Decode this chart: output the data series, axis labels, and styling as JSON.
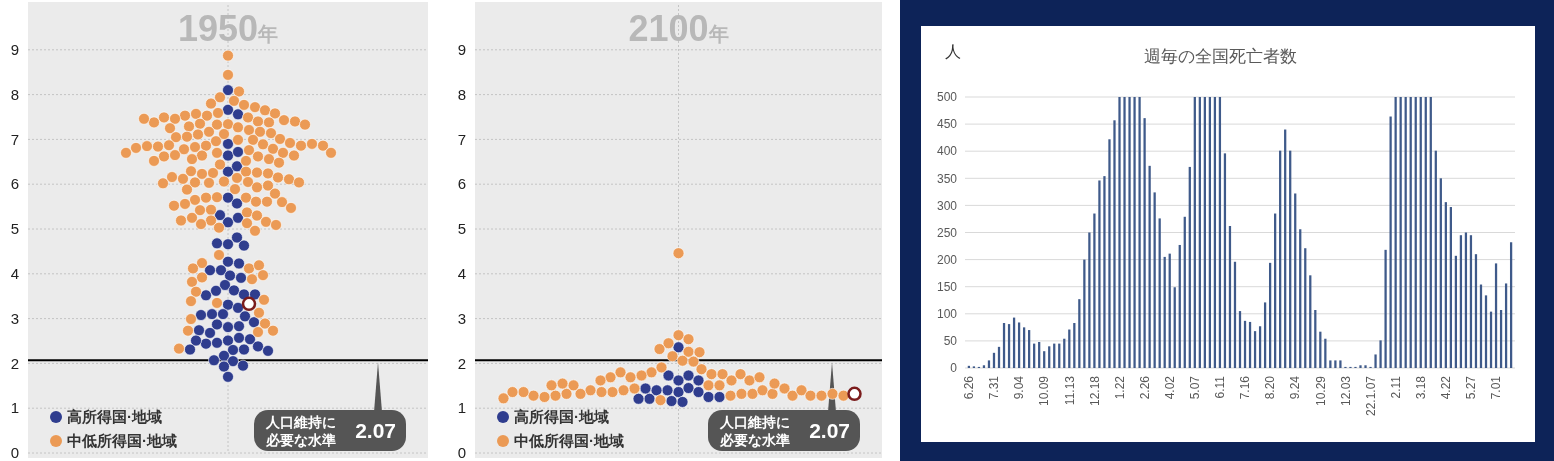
{
  "chart_data": [
    {
      "type": "scatter",
      "title": "1950年",
      "categories": [
        null
      ],
      "ylim": [
        0,
        10
      ],
      "yticks": [
        0,
        1,
        2,
        3,
        4,
        5,
        6,
        7,
        8,
        9
      ],
      "grid": true,
      "legend": "bottom left",
      "ref_lines": [
        {
          "axis": "y",
          "value": 2.07,
          "label": "人口維持に必要な水準 2.07",
          "color": "#000000"
        }
      ],
      "series": [
        {
          "name": "高所得国·地域",
          "color": "#2f3d8e",
          "x": [
            null,
            null,
            null,
            null,
            null,
            null,
            null,
            null,
            null,
            null,
            null,
            null,
            null,
            null,
            null,
            null,
            null,
            null,
            null,
            null,
            null,
            null,
            null,
            null,
            null,
            null,
            null,
            null,
            null,
            null,
            null,
            null,
            null,
            null,
            null,
            null,
            null,
            null,
            null,
            null,
            null,
            null,
            null,
            null,
            null,
            null,
            null,
            null,
            null,
            null,
            null,
            null,
            null,
            null,
            null,
            null,
            null,
            null
          ],
          "values": [
            6.64,
            6.28,
            7.66,
            8.1,
            7.56,
            6.9,
            6.4,
            6.72,
            5.7,
            5.57,
            5.15,
            5.25,
            5.31,
            4.66,
            4.81,
            4.68,
            4.63,
            4.27,
            4.23,
            4.08,
            4.08,
            3.96,
            3.91,
            3.75,
            3.63,
            3.62,
            3.54,
            3.52,
            3.54,
            3.31,
            3.24,
            3.1,
            3.1,
            3.05,
            3.08,
            2.81,
            2.92,
            2.87,
            2.83,
            2.68,
            2.74,
            2.51,
            2.57,
            2.46,
            2.54,
            2.44,
            2.51,
            2.3,
            2.38,
            2.31,
            2.17,
            2.31,
            2.28,
            2.05,
            2.07,
            1.95,
            1.93,
            1.7
          ]
        },
        {
          "name": "中低所得国·地域",
          "color": "#eb9a55",
          "x": [
            null,
            null,
            null,
            null,
            null,
            null,
            null,
            null,
            null,
            null,
            null,
            null,
            null,
            null,
            null,
            null,
            null,
            null,
            null,
            null,
            null,
            null,
            null,
            null,
            null,
            null,
            null,
            null,
            null,
            null,
            null,
            null,
            null,
            null,
            null,
            null,
            null,
            null,
            null,
            null,
            null,
            null,
            null,
            null,
            null,
            null,
            null,
            null,
            null,
            null,
            null,
            null,
            null,
            null,
            null,
            null,
            null,
            null,
            null,
            null,
            null,
            null,
            null,
            null,
            null,
            null,
            null,
            null,
            null,
            null,
            null,
            null,
            null,
            null,
            null,
            null,
            null,
            null,
            null,
            null,
            null,
            null,
            null,
            null,
            null,
            null,
            null,
            null,
            null,
            null,
            null,
            null,
            null,
            null,
            null,
            null,
            null,
            null,
            null,
            null,
            null,
            null,
            null,
            null,
            null,
            null,
            null,
            null,
            null,
            null,
            null,
            null,
            null,
            null,
            null,
            null,
            null,
            null,
            null,
            null,
            null,
            null,
            null,
            null,
            null,
            null,
            null,
            null,
            null,
            null,
            null,
            null,
            null,
            null,
            null,
            null
          ],
          "values": [
            4.42,
            4.12,
            4.24,
            4.19,
            4.12,
            3.88,
            3.97,
            3.92,
            3.82,
            3.6,
            3.42,
            3.35,
            3.39,
            3.13,
            2.99,
            2.89,
            2.7,
            2.73,
            2.73,
            2.33,
            8.87,
            8.44,
            8.07,
            7.86,
            7.94,
            7.77,
            7.8,
            7.72,
            7.59,
            7.53,
            7.49,
            7.57,
            7.65,
            7.53,
            7.58,
            7.46,
            7.34,
            7.27,
            7.4,
            7.38,
            7.33,
            7.43,
            7.49,
            7.35,
            7.29,
            7.4,
            7.38,
            7.33,
            7.46,
            7.17,
            7.21,
            7.12,
            7.17,
            7.11,
            7.25,
            7.14,
            6.99,
            7.06,
            6.99,
            7.01,
            7.05,
            6.96,
            6.86,
            6.89,
            6.83,
            6.87,
            6.78,
            6.92,
            6.84,
            6.86,
            6.79,
            6.85,
            6.9,
            6.81,
            6.86,
            6.76,
            6.7,
            6.64,
            6.7,
            6.62,
            6.65,
            6.7,
            6.62,
            6.7,
            6.56,
            6.64,
            6.52,
            6.56,
            6.44,
            6.52,
            6.48,
            6.25,
            6.28,
            6.23,
            6.26,
            6.29,
            6.24,
            6.14,
            6.12,
            6.15,
            6.06,
            6.16,
            6.11,
            6.05,
            6.03,
            5.93,
            6.04,
            6.02,
            5.97,
            6.04,
            5.89,
            5.88,
            5.71,
            5.7,
            5.7,
            5.79,
            5.61,
            5.65,
            5.61,
            5.56,
            5.6,
            5.52,
            5.43,
            5.47,
            5.37,
            5.42,
            5.3,
            5.25,
            5.19,
            5.16,
            5.19,
            5.13,
            5.03,
            5.11,
            5.09,
            4.96
          ]
        },
        {
          "color": "#7b1c1c",
          "x": [
            null
          ],
          "values": [
            3.33
          ]
        }
      ]
    },
    {
      "type": "scatter",
      "title": "2100年",
      "categories": [
        null
      ],
      "ylim": [
        0,
        10
      ],
      "yticks": [
        0,
        1,
        2,
        3,
        4,
        5,
        6,
        7,
        8,
        9
      ],
      "grid": true,
      "legend": "bottom left",
      "ref_lines": [
        {
          "axis": "y",
          "value": 2.07,
          "label": "人口維持に必要な水準 2.07",
          "color": "#000000"
        }
      ],
      "series": [
        {
          "name": "高所得国·地域",
          "color": "#2f3d8e",
          "x": [
            null,
            null,
            null,
            null,
            null,
            null,
            null,
            null,
            null,
            null,
            null,
            null,
            null,
            null,
            null,
            null,
            null
          ],
          "values": [
            1.36,
            1.45,
            1.4,
            1.62,
            1.73,
            1.73,
            1.36,
            1.4,
            1.25,
            1.14,
            1.16,
            1.21,
            1.21,
            1.25,
            2.36,
            1.62,
            1.44
          ]
        },
        {
          "name": "中低所得国·地域",
          "color": "#eb9a55",
          "x": [
            null,
            null,
            null,
            null,
            null,
            null,
            null,
            null,
            null,
            null,
            null,
            null,
            null,
            null,
            null,
            null,
            null,
            null,
            null,
            null,
            null,
            null,
            null,
            null,
            null,
            null,
            null,
            null,
            null,
            null,
            null,
            null,
            null,
            null,
            null,
            null,
            null,
            null,
            null,
            null,
            null,
            null,
            null,
            null,
            null,
            null,
            null,
            null,
            null,
            null,
            null,
            null,
            null,
            null,
            null,
            null
          ],
          "values": [
            4.46,
            2.63,
            2.54,
            2.45,
            2.26,
            2.32,
            2.25,
            2.16,
            2.06,
            2.04,
            1.91,
            1.87,
            1.8,
            1.76,
            1.73,
            1.76,
            1.69,
            1.62,
            1.8,
            1.76,
            1.69,
            1.62,
            1.51,
            1.51,
            1.44,
            1.4,
            1.28,
            1.32,
            1.36,
            1.32,
            1.36,
            1.4,
            1.4,
            1.32,
            1.32,
            1.55,
            1.44,
            1.51,
            1.32,
            1.28,
            1.28,
            1.4,
            1.28,
            1.25,
            1.28,
            1.28,
            1.32,
            1.36,
            1.28,
            1.36,
            1.22,
            1.18,
            1.55,
            1.51,
            1.62,
            1.69
          ]
        },
        {
          "color": "#7b1c1c",
          "x": [
            null
          ],
          "values": [
            1.32
          ]
        }
      ]
    },
    {
      "type": "bar",
      "title": "週毎の全国死亡者数",
      "ylabel": "人",
      "ylim": [
        0,
        500
      ],
      "yticks": [
        0,
        50,
        100,
        150,
        200,
        250,
        300,
        350,
        400,
        450,
        500
      ],
      "grid": "y",
      "categories": [
        "6.26",
        null,
        null,
        null,
        null,
        "7.31",
        null,
        null,
        null,
        null,
        "9.04",
        null,
        null,
        null,
        null,
        "10.09",
        null,
        null,
        null,
        null,
        "11.13",
        null,
        null,
        null,
        null,
        "12.18",
        null,
        null,
        null,
        null,
        "1.22",
        null,
        null,
        null,
        null,
        "2.26",
        null,
        null,
        null,
        null,
        "4.02",
        null,
        null,
        null,
        null,
        "5.07",
        null,
        null,
        null,
        null,
        "6.11",
        null,
        null,
        null,
        null,
        "7.16",
        null,
        null,
        null,
        null,
        "8.20",
        null,
        null,
        null,
        null,
        "9.24",
        null,
        null,
        null,
        null,
        "10.29",
        null,
        null,
        null,
        null,
        "12.03",
        null,
        null,
        null,
        null,
        "22.1.07",
        null,
        null,
        null,
        null,
        "2.11",
        null,
        null,
        null,
        null,
        "3.18",
        null,
        null,
        null,
        null,
        "4.22",
        null,
        null,
        null,
        null,
        "5.27",
        null,
        null,
        null,
        null,
        "7.01",
        null,
        null,
        null
      ],
      "series": [
        {
          "color": "#3f5a8a",
          "values": [
            4,
            3,
            2,
            5,
            14,
            28,
            39,
            83,
            81,
            93,
            84,
            75,
            70,
            45,
            48,
            31,
            40,
            45,
            45,
            54,
            71,
            83,
            127,
            200,
            250,
            285,
            346,
            354,
            422,
            457,
            500,
            500,
            500,
            500,
            500,
            461,
            373,
            324,
            276,
            205,
            211,
            149,
            227,
            279,
            371,
            500,
            500,
            500,
            500,
            500,
            500,
            396,
            262,
            196,
            105,
            87,
            85,
            68,
            77,
            121,
            194,
            285,
            401,
            440,
            401,
            322,
            256,
            221,
            171,
            107,
            67,
            54,
            14,
            14,
            14,
            2,
            2,
            2,
            5,
            5,
            2,
            25,
            51,
            218,
            464,
            500,
            500,
            500,
            500,
            500,
            500,
            500,
            500,
            401,
            350,
            306,
            297,
            207,
            245,
            250,
            245,
            210,
            154,
            134,
            104,
            193,
            107,
            156,
            232
          ]
        }
      ]
    }
  ]
}
